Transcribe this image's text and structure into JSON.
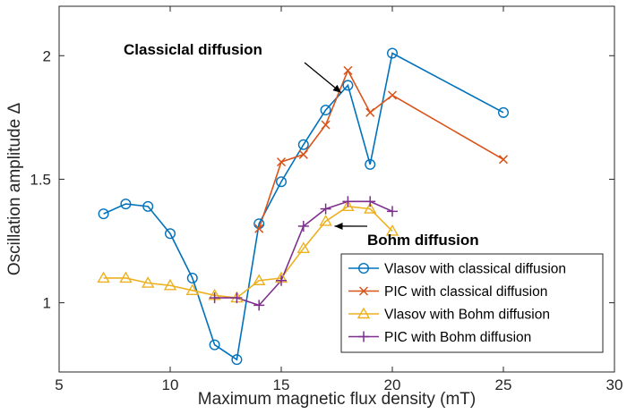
{
  "chart_data": {
    "type": "line",
    "xlabel": "Maximum magnetic flux density (mT)",
    "ylabel": "Oscillation amplitude Δ",
    "xlim": [
      5,
      30
    ],
    "ylim": [
      0.72,
      2.2
    ],
    "xticks": [
      5,
      10,
      15,
      20,
      25,
      30
    ],
    "xtick_labels": [
      "5",
      "10",
      "15",
      "20",
      "25",
      "30"
    ],
    "yticks": [
      1,
      1.5,
      2
    ],
    "ytick_labels": [
      "1",
      "1.5",
      "2"
    ],
    "grid": false,
    "legend_position": "bottom-right",
    "series": [
      {
        "name": "Vlasov with classical diffusion",
        "color": "#0072BD",
        "marker": "circle",
        "x": [
          7,
          8,
          9,
          10,
          11,
          12,
          13,
          14,
          15,
          16,
          17,
          18,
          19,
          20,
          25
        ],
        "y": [
          1.36,
          1.4,
          1.39,
          1.28,
          1.1,
          0.83,
          0.77,
          1.32,
          1.49,
          1.64,
          1.78,
          1.88,
          1.56,
          2.01,
          1.77
        ]
      },
      {
        "name": "PIC with classical diffusion",
        "color": "#D95319",
        "marker": "x",
        "x": [
          14,
          15,
          16,
          17,
          18,
          19,
          20,
          25
        ],
        "y": [
          1.3,
          1.57,
          1.6,
          1.72,
          1.94,
          1.77,
          1.84,
          1.58
        ]
      },
      {
        "name": "Vlasov with Bohm diffusion",
        "color": "#EDB120",
        "marker": "triangle",
        "x": [
          7,
          8,
          9,
          10,
          11,
          12,
          13,
          14,
          15,
          16,
          17,
          18,
          19,
          20
        ],
        "y": [
          1.1,
          1.1,
          1.08,
          1.07,
          1.05,
          1.03,
          1.02,
          1.09,
          1.1,
          1.22,
          1.33,
          1.39,
          1.38,
          1.29
        ]
      },
      {
        "name": "PIC with Bohm diffusion",
        "color": "#7E2F8E",
        "marker": "plus",
        "x": [
          12,
          13,
          14,
          15,
          16,
          17,
          18,
          19,
          20
        ],
        "y": [
          1.02,
          1.02,
          0.99,
          1.09,
          1.31,
          1.38,
          1.41,
          1.41,
          1.37
        ]
      }
    ],
    "annotations": [
      {
        "text": "Classiclal diffusion",
        "arrow_to": [
          17.7,
          1.85
        ]
      },
      {
        "text": "Bohm diffusion",
        "arrow_to": [
          17.4,
          1.31
        ]
      }
    ]
  }
}
